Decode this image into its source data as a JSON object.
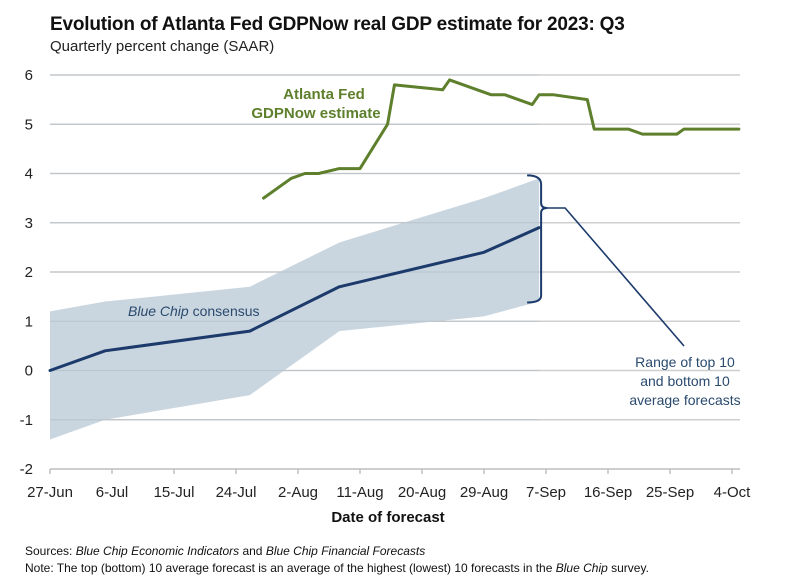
{
  "chart_data": {
    "type": "line",
    "title": "Evolution of Atlanta Fed GDPNow real GDP estimate for 2023: Q3",
    "subtitle": "Quarterly percent change (SAAR)",
    "xlabel": "Date of forecast",
    "ylabel": "",
    "ylim": [
      -2,
      6
    ],
    "yticks": [
      6,
      5,
      4,
      3,
      2,
      1,
      0,
      -1,
      -2
    ],
    "xrange_days": [
      0,
      100
    ],
    "x_origin_date": "27-Jun",
    "xticks": [
      {
        "day": 0,
        "label": "27-Jun"
      },
      {
        "day": 9,
        "label": "6-Jul"
      },
      {
        "day": 18,
        "label": "15-Jul"
      },
      {
        "day": 27,
        "label": "24-Jul"
      },
      {
        "day": 36,
        "label": "2-Aug"
      },
      {
        "day": 45,
        "label": "11-Aug"
      },
      {
        "day": 54,
        "label": "20-Aug"
      },
      {
        "day": 63,
        "label": "29-Aug"
      },
      {
        "day": 72,
        "label": "7-Sep"
      },
      {
        "day": 81,
        "label": "16-Sep"
      },
      {
        "day": 90,
        "label": "25-Sep"
      },
      {
        "day": 99,
        "label": "4-Oct"
      }
    ],
    "grid": true,
    "series": [
      {
        "name": "Atlanta Fed GDPNow estimate",
        "color": "#5e7f2c",
        "x_days": [
          31,
          35,
          37,
          39,
          42,
          45,
          49,
          50,
          57,
          58,
          64,
          66,
          70,
          71,
          73,
          78,
          79,
          84,
          86,
          91,
          92,
          100
        ],
        "values": [
          3.5,
          3.9,
          4.0,
          4.0,
          4.1,
          4.1,
          5.0,
          5.8,
          5.7,
          5.9,
          5.6,
          5.6,
          5.4,
          5.6,
          5.6,
          5.5,
          4.9,
          4.9,
          4.8,
          4.8,
          4.9,
          4.9
        ]
      },
      {
        "name": "Blue Chip consensus",
        "color": "#1c3a6b",
        "x_days": [
          0,
          8,
          29,
          42,
          63,
          71
        ],
        "values": [
          0.0,
          0.4,
          0.8,
          1.7,
          2.4,
          2.9
        ]
      }
    ],
    "band": {
      "name": "Range of top 10 and bottom 10 average forecasts",
      "color": "#c5d2dc",
      "x_days": [
        0,
        8,
        29,
        42,
        63,
        71
      ],
      "upper": [
        1.2,
        1.4,
        1.7,
        2.6,
        3.5,
        3.9
      ],
      "lower": [
        -1.4,
        -1.0,
        -0.5,
        0.8,
        1.1,
        1.4
      ]
    },
    "annotations": {
      "gdpnow_line1": "Atlanta Fed",
      "gdpnow_line2": "GDPNow estimate",
      "bluechip_italic": "Blue Chip",
      "bluechip_rest": " consensus",
      "range_line1": "Range of top 10",
      "range_line2": "and bottom 10",
      "range_line3": "average forecasts"
    }
  },
  "footer": {
    "sources_label": "Sources:",
    "sources_italic1": "Blue Chip Economic Indicators",
    "sources_mid": " and ",
    "sources_italic2": "Blue Chip Financial Forecasts",
    "note_label": "Note:",
    "note_text1": " The top (bottom) 10 average forecast is an average of the highest (lowest) 10 forecasts in the ",
    "note_italic": "Blue Chip",
    "note_text2": " survey."
  }
}
